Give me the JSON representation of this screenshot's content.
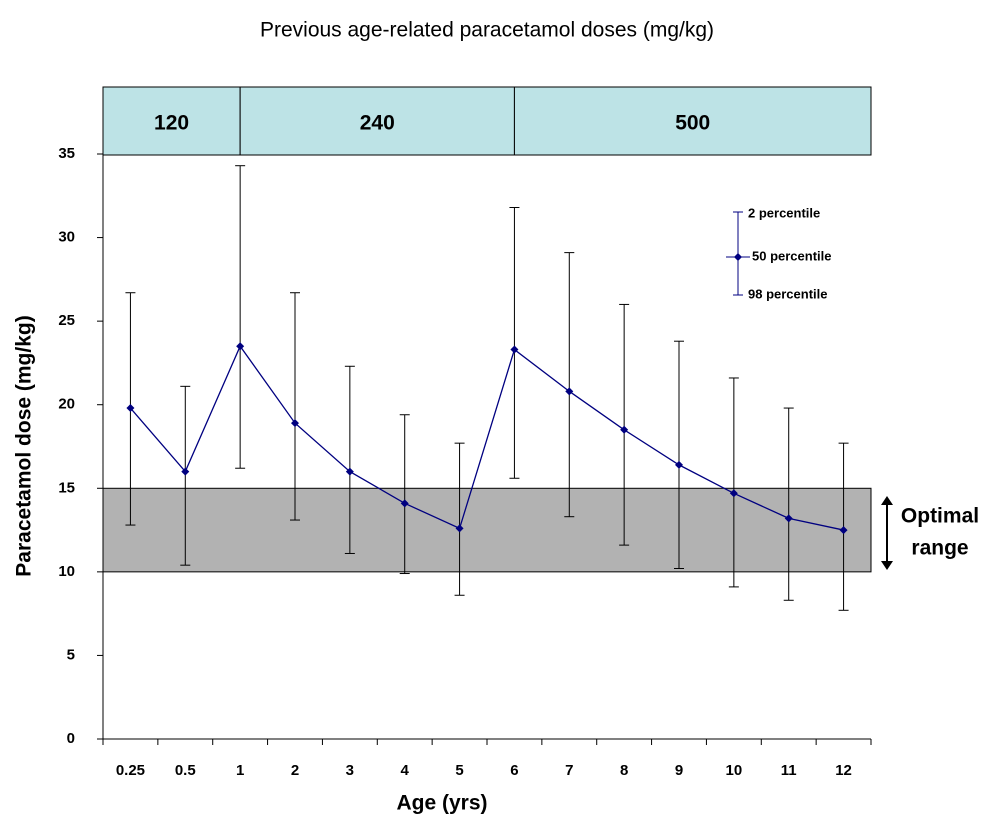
{
  "chart_data": {
    "type": "line",
    "title": "Previous age-related paracetamol doses (mg/kg)",
    "x_label": "Age (yrs)",
    "y_label": "Paracetamol dose (mg/kg)",
    "categories": [
      "0.25",
      "0.5",
      "1",
      "2",
      "3",
      "4",
      "5",
      "6",
      "7",
      "8",
      "9",
      "10",
      "11",
      "12"
    ],
    "series": [
      {
        "name": "50 percentile",
        "color": "#000080",
        "values": [
          19.8,
          16.0,
          23.5,
          18.9,
          16.0,
          14.1,
          12.6,
          23.3,
          20.8,
          18.5,
          16.4,
          14.7,
          13.2,
          12.5
        ]
      }
    ],
    "upper": {
      "name": "2 percentile",
      "values": [
        26.7,
        21.1,
        34.3,
        26.7,
        22.3,
        19.4,
        17.7,
        31.8,
        29.1,
        26.0,
        23.8,
        21.6,
        19.8,
        17.7
      ]
    },
    "lower": {
      "name": "98 percentile",
      "values": [
        12.8,
        10.4,
        16.2,
        13.1,
        11.1,
        9.9,
        8.6,
        15.6,
        13.3,
        11.6,
        10.2,
        9.1,
        8.3,
        7.7
      ]
    },
    "optimal_range": [
      10,
      15
    ],
    "optimal_range_label": [
      "Optimal",
      "range"
    ],
    "optimal_range_color": "#b2b2b2",
    "dose_bands": [
      "120",
      "240",
      "500"
    ],
    "dose_band_color": "#bde3e6",
    "ylim": [
      0,
      35
    ],
    "yticks": [
      0,
      5,
      10,
      15,
      20,
      25,
      30,
      35
    ]
  }
}
